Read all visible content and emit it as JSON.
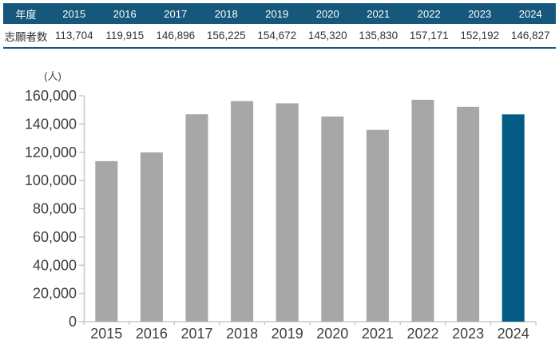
{
  "colors": {
    "table_header_bg": "#15587B",
    "table_bottom_border": "#15587B",
    "table_text": "#333333",
    "axis_line": "#C8C8C8",
    "label_text": "#404040"
  },
  "table": {
    "header_label": "年度",
    "row_label": "志願者数",
    "years": [
      "2015",
      "2016",
      "2017",
      "2018",
      "2019",
      "2020",
      "2021",
      "2022",
      "2023",
      "2024"
    ],
    "values_display": [
      "113,704",
      "119,915",
      "146,896",
      "156,225",
      "154,672",
      "145,320",
      "135,830",
      "157,171",
      "152,192",
      "146,827"
    ]
  },
  "chart_data": {
    "type": "bar",
    "title": "",
    "unit_label": "(人)",
    "categories": [
      "2015",
      "2016",
      "2017",
      "2018",
      "2019",
      "2020",
      "2021",
      "2022",
      "2023",
      "2024"
    ],
    "values": [
      113704,
      119915,
      146896,
      156225,
      154672,
      145320,
      135830,
      157171,
      152192,
      146827
    ],
    "xlabel": "",
    "ylabel": "(人)",
    "ylim": [
      0,
      160000
    ],
    "ytick_step": 20000,
    "ytick_labels": [
      "0",
      "20,000",
      "40,000",
      "60,000",
      "80,000",
      "100,000",
      "120,000",
      "140,000",
      "160,000"
    ],
    "grid": false,
    "legend": "none",
    "bar_color": "#A7A7A7",
    "highlight_color": "#045B84",
    "highlight_index": 9
  }
}
